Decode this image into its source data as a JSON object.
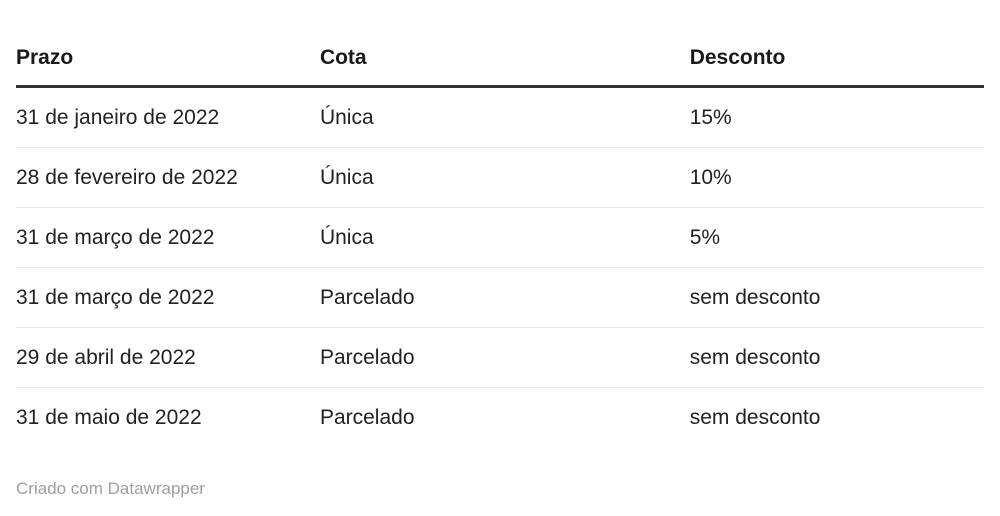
{
  "chart_data": {
    "type": "table",
    "columns": [
      "Prazo",
      "Cota",
      "Desconto"
    ],
    "rows": [
      [
        "31 de janeiro de 2022",
        "Única",
        "15%"
      ],
      [
        "28 de fevereiro de 2022",
        "Única",
        "10%"
      ],
      [
        "31 de março de 2022",
        "Única",
        "5%"
      ],
      [
        "31 de março de 2022",
        "Parcelado",
        "sem desconto"
      ],
      [
        "29 de abril de 2022",
        "Parcelado",
        "sem desconto"
      ],
      [
        "31 de maio de 2022",
        "Parcelado",
        "sem desconto"
      ]
    ],
    "title": "",
    "layout_hints": {
      "header_rule": "thick dark line under header",
      "row_dividers": "thin light gray lines",
      "grid": "horizontal only"
    }
  },
  "footer": {
    "credit": "Criado com Datawrapper"
  },
  "colors": {
    "background": "#ffffff",
    "header_text": "#1a1a1a",
    "body_text": "#222222",
    "header_border": "#333333",
    "row_divider": "#e8e8e8",
    "footer_text": "#9e9e9e"
  }
}
